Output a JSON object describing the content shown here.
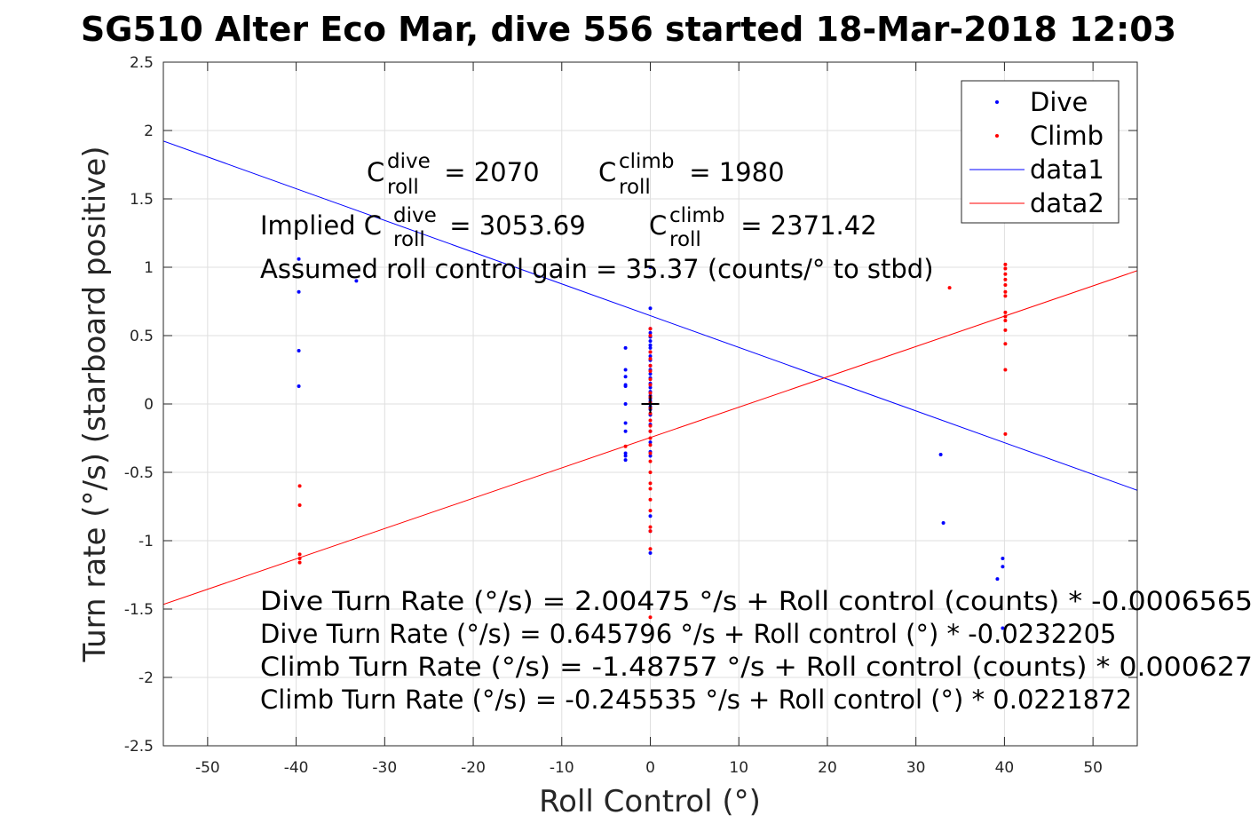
{
  "title": "SG510 Alter Eco Mar, dive 556 started 18-Mar-2018 12:03",
  "chart_data": {
    "type": "scatter",
    "xlabel": "Roll Control (°)",
    "ylabel": "Turn rate (°/s) (starboard positive)",
    "xlim": [
      -55,
      55
    ],
    "ylim": [
      -2.5,
      2.5
    ],
    "xticks": [
      -50,
      -40,
      -30,
      -20,
      -10,
      0,
      10,
      20,
      30,
      40,
      50
    ],
    "yticks": [
      -2.5,
      -2,
      -1.5,
      -1,
      -0.5,
      0,
      0.5,
      1,
      1.5,
      2,
      2.5
    ],
    "ytick_labels": [
      "-2.5",
      "-2",
      "-1.5",
      "-1",
      "-0.5",
      "0",
      "0.5",
      "1",
      "1.5",
      "2",
      "2.5"
    ],
    "grid": true,
    "legend_position": "top-right",
    "series": [
      {
        "name": "Dive",
        "kind": "points",
        "color": "#0000ff",
        "points": [
          [
            -39.7,
            1.06
          ],
          [
            -39.7,
            0.82
          ],
          [
            -39.7,
            0.39
          ],
          [
            -39.7,
            0.13
          ],
          [
            -33.2,
            0.9
          ],
          [
            -2.8,
            0.41
          ],
          [
            -2.8,
            0.25
          ],
          [
            -2.8,
            0.2
          ],
          [
            -2.8,
            0.14
          ],
          [
            -2.8,
            0.13
          ],
          [
            -2.8,
            0.0
          ],
          [
            -2.8,
            -0.14
          ],
          [
            -2.8,
            -0.2
          ],
          [
            -2.8,
            -0.36
          ],
          [
            -2.8,
            -0.38
          ],
          [
            -2.8,
            -0.41
          ],
          [
            0.0,
            1.0
          ],
          [
            0.0,
            0.7
          ],
          [
            0.0,
            0.55
          ],
          [
            0.0,
            0.52
          ],
          [
            0.0,
            0.49
          ],
          [
            0.0,
            0.46
          ],
          [
            0.0,
            0.43
          ],
          [
            0.0,
            0.41
          ],
          [
            0.0,
            0.38
          ],
          [
            0.0,
            0.35
          ],
          [
            0.0,
            0.32
          ],
          [
            0.0,
            0.28
          ],
          [
            0.0,
            0.25
          ],
          [
            0.0,
            0.22
          ],
          [
            0.0,
            0.19
          ],
          [
            0.0,
            0.15
          ],
          [
            0.0,
            0.12
          ],
          [
            0.0,
            0.09
          ],
          [
            0.0,
            0.06
          ],
          [
            0.0,
            0.04
          ],
          [
            0.0,
            0.02
          ],
          [
            0.0,
            0.0
          ],
          [
            0.0,
            -0.02
          ],
          [
            0.0,
            -0.04
          ],
          [
            0.0,
            -0.08
          ],
          [
            0.0,
            -0.15
          ],
          [
            0.0,
            -0.2
          ],
          [
            0.0,
            -0.28
          ],
          [
            0.0,
            -0.35
          ],
          [
            0.0,
            -0.38
          ],
          [
            0.0,
            -0.82
          ],
          [
            0.0,
            -0.93
          ],
          [
            0.0,
            -1.09
          ],
          [
            32.8,
            -0.37
          ],
          [
            33.1,
            -0.87
          ],
          [
            39.2,
            -1.28
          ],
          [
            39.8,
            -1.13
          ],
          [
            39.8,
            -1.19
          ],
          [
            39.8,
            -1.64
          ]
        ]
      },
      {
        "name": "Climb",
        "kind": "points",
        "color": "#ff0000",
        "points": [
          [
            -39.6,
            -0.6
          ],
          [
            -39.6,
            -0.74
          ],
          [
            -39.6,
            -1.1
          ],
          [
            -39.6,
            -1.13
          ],
          [
            -39.6,
            -1.16
          ],
          [
            -2.8,
            -0.31
          ],
          [
            0.0,
            0.55
          ],
          [
            0.0,
            0.5
          ],
          [
            0.0,
            0.38
          ],
          [
            0.0,
            0.33
          ],
          [
            0.0,
            0.28
          ],
          [
            0.0,
            0.24
          ],
          [
            0.0,
            0.18
          ],
          [
            0.0,
            0.14
          ],
          [
            0.0,
            0.08
          ],
          [
            0.0,
            0.05
          ],
          [
            0.0,
            0.01
          ],
          [
            0.0,
            -0.03
          ],
          [
            0.0,
            -0.07
          ],
          [
            0.0,
            -0.12
          ],
          [
            0.0,
            -0.16
          ],
          [
            0.0,
            -0.2
          ],
          [
            0.0,
            -0.25
          ],
          [
            0.0,
            -0.3
          ],
          [
            0.0,
            -0.36
          ],
          [
            0.0,
            -0.42
          ],
          [
            0.0,
            -0.5
          ],
          [
            0.0,
            -0.58
          ],
          [
            0.0,
            -0.62
          ],
          [
            0.0,
            -0.7
          ],
          [
            0.0,
            -0.78
          ],
          [
            0.0,
            -0.9
          ],
          [
            0.0,
            -0.93
          ],
          [
            0.0,
            -1.06
          ],
          [
            0.0,
            -1.56
          ],
          [
            33.8,
            0.85
          ],
          [
            40.1,
            1.02
          ],
          [
            40.1,
            0.99
          ],
          [
            40.1,
            0.95
          ],
          [
            40.1,
            0.91
          ],
          [
            40.1,
            0.87
          ],
          [
            40.1,
            0.82
          ],
          [
            40.1,
            0.79
          ],
          [
            40.1,
            0.67
          ],
          [
            40.1,
            0.64
          ],
          [
            40.1,
            0.61
          ],
          [
            40.1,
            0.54
          ],
          [
            40.1,
            0.44
          ],
          [
            40.1,
            0.25
          ],
          [
            40.1,
            -0.22
          ]
        ]
      },
      {
        "name": "data1",
        "kind": "line",
        "color": "#0000ff",
        "intercept": 0.645796,
        "slope": -0.0232205
      },
      {
        "name": "data2",
        "kind": "line",
        "color": "#ff0000",
        "intercept": -0.245535,
        "slope": 0.0221872
      }
    ],
    "center_marker": {
      "x": 0,
      "y": 0,
      "symbol": "+"
    },
    "annotations": {
      "c_roll": {
        "c_main": "C",
        "roll_sub": "roll",
        "dive_sup": "dive",
        "climb_sup": "climb",
        "dive_value": " = 2070",
        "climb_value": " = 1980"
      },
      "implied": {
        "prefix": "Implied C",
        "dive_value": " = 3053.69",
        "climb_value": " = 2371.42"
      },
      "gain": "Assumed roll control gain = 35.37 (counts/° to stbd)",
      "equations": [
        "Dive Turn Rate (°/s) = 2.00475 °/s + Roll control (counts) * -0.0006565",
        "Dive Turn Rate (°/s) = 0.645796 °/s + Roll control (°) * -0.0232205",
        "Climb Turn Rate (°/s) = -1.48757 °/s + Roll control (counts) * 0.000627",
        "Climb Turn Rate (°/s) = -0.245535 °/s + Roll control (°) * 0.0221872"
      ]
    }
  }
}
